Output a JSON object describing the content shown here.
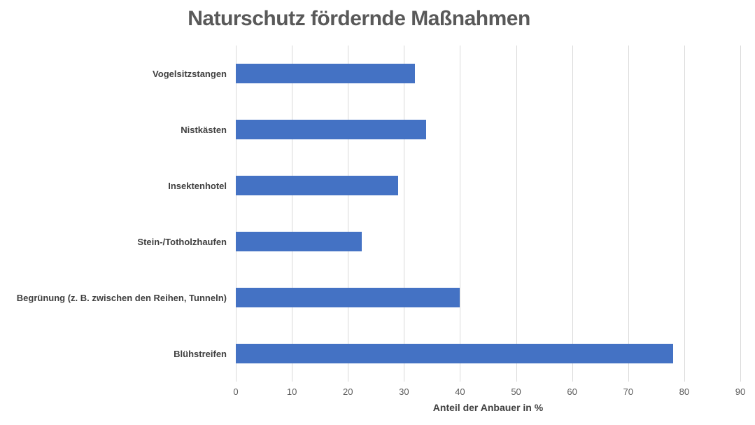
{
  "chart_data": {
    "type": "bar",
    "orientation": "horizontal",
    "title": "Naturschutz fördernde Maßnahmen",
    "categories": [
      "Vogelsitzstangen",
      "Nistkästen",
      "Insektenhotel",
      "Stein-/Totholzhaufen",
      "Begrünung (z. B. zwischen den Reihen, Tunneln)",
      "Blühstreifen"
    ],
    "values": [
      32,
      34,
      29,
      22.5,
      40,
      78
    ],
    "xlabel": "Anteil der Anbauer in %",
    "ylabel": "",
    "xlim": [
      0,
      90
    ],
    "xticks": [
      0,
      10,
      20,
      30,
      40,
      50,
      60,
      70,
      80,
      90
    ],
    "grid": true,
    "legend": false,
    "colors": {
      "bar": "#4472c4",
      "gridline": "#d9d9d9",
      "title_text": "#595959",
      "category_text": "#404040",
      "tick_text": "#595959",
      "axis_title_text": "#404040",
      "background": "#ffffff"
    }
  }
}
